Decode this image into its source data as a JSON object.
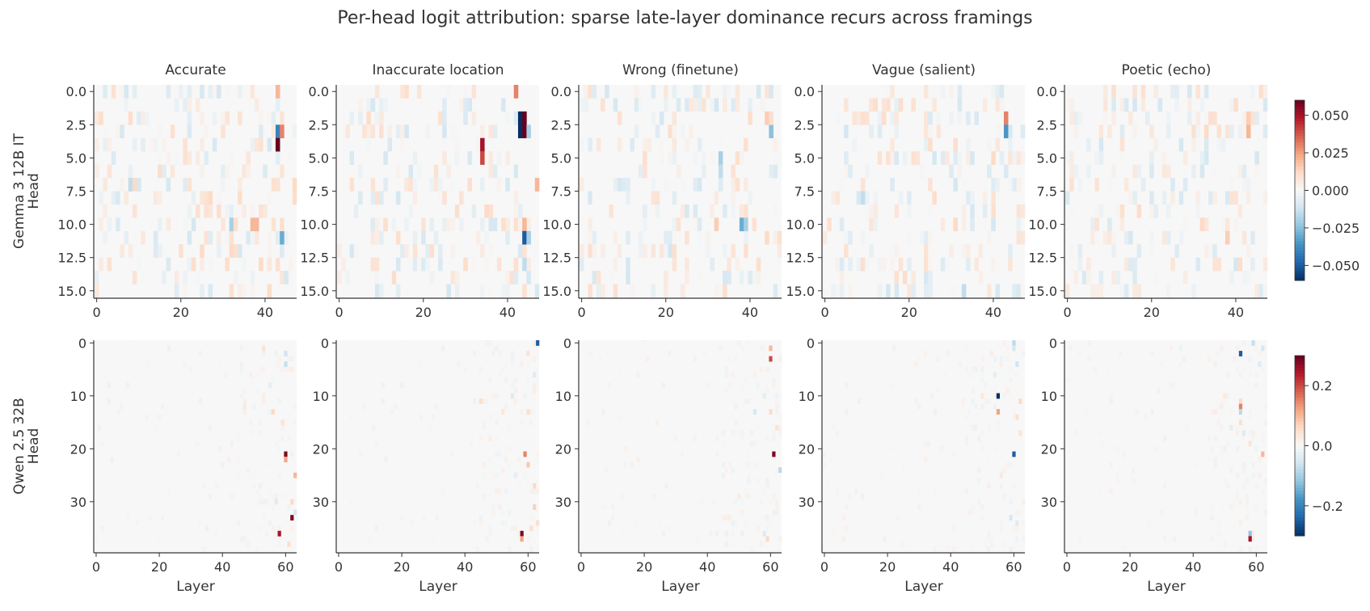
{
  "figure": {
    "title": "Per-head logit attribution: sparse late-layer dominance recurs across framings"
  },
  "chart_data": [
    {
      "type": "heatmap",
      "row": 0,
      "title": "Accurate",
      "ylabel_lines": [
        "Gemma 3 12B IT",
        "Head"
      ],
      "xlabel": "",
      "n_layers": 48,
      "n_heads": 16,
      "x_ticks": [
        0,
        20,
        40
      ],
      "y_ticks": [
        "0.0",
        "2.5",
        "5.0",
        "7.5",
        "10.0",
        "12.5",
        "15.0"
      ],
      "clim": [
        -0.06,
        0.06
      ],
      "cells": [
        [
          43,
          0,
          0.02
        ],
        [
          43,
          3,
          -0.04
        ],
        [
          43,
          4,
          0.06
        ],
        [
          44,
          3,
          0.03
        ],
        [
          29,
          0,
          -0.01
        ],
        [
          32,
          10,
          -0.02
        ],
        [
          33,
          10,
          0.01
        ],
        [
          37,
          10,
          0.02
        ],
        [
          38,
          10,
          0.02
        ],
        [
          44,
          11,
          -0.03
        ],
        [
          44,
          10,
          0.01
        ],
        [
          8,
          7,
          -0.015
        ],
        [
          9,
          7,
          0.012
        ],
        [
          10,
          7,
          -0.01
        ],
        [
          27,
          8,
          0.012
        ],
        [
          25,
          12,
          0.012
        ],
        [
          32,
          12,
          0.012
        ],
        [
          33,
          12,
          0.01
        ],
        [
          39,
          13,
          0.012
        ],
        [
          43,
          13,
          0.01
        ],
        [
          45,
          14,
          -0.01
        ],
        [
          47,
          7,
          0.012
        ],
        [
          28,
          4,
          -0.01
        ],
        [
          24,
          9,
          0.01
        ],
        [
          39,
          3,
          -0.008
        ],
        [
          22,
          5,
          0.006
        ]
      ]
    },
    {
      "type": "heatmap",
      "row": 0,
      "title": "Inaccurate location",
      "ylabel_lines": [],
      "xlabel": "",
      "n_layers": 48,
      "n_heads": 16,
      "x_ticks": [
        0,
        20,
        40
      ],
      "y_ticks": [
        "0.0",
        "2.5",
        "5.0",
        "7.5",
        "10.0",
        "12.5",
        "15.0"
      ],
      "clim": [
        -0.06,
        0.06
      ],
      "cells": [
        [
          42,
          0,
          0.03
        ],
        [
          43,
          2,
          -0.06
        ],
        [
          43,
          3,
          -0.06
        ],
        [
          44,
          2,
          0.06
        ],
        [
          44,
          3,
          0.07
        ],
        [
          45,
          3,
          -0.02
        ],
        [
          34,
          4,
          0.05
        ],
        [
          34,
          5,
          0.04
        ],
        [
          47,
          7,
          0.02
        ],
        [
          44,
          10,
          0.02
        ],
        [
          44,
          11,
          -0.05
        ],
        [
          45,
          11,
          -0.02
        ],
        [
          44,
          13,
          -0.015
        ],
        [
          40,
          7,
          -0.01
        ],
        [
          35,
          9,
          0.012
        ],
        [
          36,
          10,
          -0.01
        ],
        [
          39,
          10,
          0.01
        ],
        [
          28,
          9,
          0.01
        ],
        [
          14,
          11,
          0.01
        ],
        [
          22,
          12,
          0.01
        ],
        [
          8,
          13,
          0.008
        ],
        [
          30,
          1,
          -0.008
        ],
        [
          10,
          2,
          0.006
        ],
        [
          38,
          13,
          0.008
        ],
        [
          25,
          8,
          0.008
        ]
      ]
    },
    {
      "type": "heatmap",
      "row": 0,
      "title": "Wrong (finetune)",
      "ylabel_lines": [],
      "xlabel": "",
      "n_layers": 48,
      "n_heads": 16,
      "x_ticks": [
        0,
        20,
        40
      ],
      "y_ticks": [
        "0.0",
        "2.5",
        "5.0",
        "7.5",
        "10.0",
        "12.5",
        "15.0"
      ],
      "clim": [
        -0.06,
        0.06
      ],
      "cells": [
        [
          42,
          0,
          -0.01
        ],
        [
          44,
          2,
          0.015
        ],
        [
          45,
          3,
          -0.025
        ],
        [
          45,
          2,
          0.01
        ],
        [
          33,
          5,
          -0.02
        ],
        [
          33,
          6,
          -0.015
        ],
        [
          38,
          10,
          -0.03
        ],
        [
          39,
          10,
          -0.02
        ],
        [
          32,
          10,
          0.015
        ],
        [
          42,
          13,
          0.01
        ],
        [
          34,
          14,
          -0.01
        ],
        [
          44,
          11,
          0.012
        ],
        [
          28,
          7,
          -0.01
        ],
        [
          22,
          4,
          0.006
        ],
        [
          15,
          9,
          -0.006
        ],
        [
          36,
          12,
          0.008
        ],
        [
          40,
          14,
          -0.008
        ],
        [
          26,
          1,
          0.006
        ]
      ]
    },
    {
      "type": "heatmap",
      "row": 0,
      "title": "Vague (salient)",
      "ylabel_lines": [],
      "xlabel": "",
      "n_layers": 48,
      "n_heads": 16,
      "x_ticks": [
        0,
        20,
        40
      ],
      "y_ticks": [
        "0.0",
        "2.5",
        "5.0",
        "7.5",
        "10.0",
        "12.5",
        "15.0"
      ],
      "clim": [
        -0.06,
        0.06
      ],
      "cells": [
        [
          43,
          2,
          0.03
        ],
        [
          43,
          3,
          -0.035
        ],
        [
          40,
          5,
          0.012
        ],
        [
          35,
          5,
          -0.01
        ],
        [
          9,
          8,
          -0.015
        ],
        [
          8,
          8,
          -0.01
        ],
        [
          31,
          10,
          0.012
        ],
        [
          40,
          9,
          0.01
        ],
        [
          40,
          10,
          -0.01
        ],
        [
          33,
          15,
          -0.015
        ],
        [
          46,
          11,
          0.008
        ],
        [
          24,
          12,
          0.008
        ],
        [
          30,
          6,
          -0.008
        ],
        [
          16,
          4,
          0.006
        ],
        [
          20,
          13,
          -0.006
        ]
      ]
    },
    {
      "type": "heatmap",
      "row": 0,
      "title": "Poetic (echo)",
      "ylabel_lines": [],
      "xlabel": "",
      "n_layers": 48,
      "n_heads": 16,
      "x_ticks": [
        0,
        20,
        40
      ],
      "y_ticks": [
        "0.0",
        "2.5",
        "5.0",
        "7.5",
        "10.0",
        "12.5",
        "15.0"
      ],
      "clim": [
        -0.06,
        0.06
      ],
      "cells": [
        [
          43,
          2,
          0.015
        ],
        [
          43,
          3,
          0.02
        ],
        [
          33,
          3,
          0.012
        ],
        [
          33,
          5,
          -0.01
        ],
        [
          32,
          10,
          0.012
        ],
        [
          38,
          11,
          0.015
        ],
        [
          28,
          7,
          -0.008
        ],
        [
          47,
          13,
          0.006
        ],
        [
          21,
          9,
          -0.006
        ],
        [
          16,
          6,
          0.006
        ],
        [
          36,
          13,
          0.008
        ],
        [
          24,
          11,
          -0.006
        ]
      ]
    },
    {
      "type": "heatmap",
      "row": 1,
      "title": "",
      "ylabel_lines": [
        "Qwen 2.5 32B",
        "Head"
      ],
      "xlabel": "Layer",
      "n_layers": 64,
      "n_heads": 40,
      "x_ticks": [
        0,
        20,
        40,
        60
      ],
      "y_ticks": [
        "0",
        "10",
        "20",
        "30"
      ],
      "clim": [
        -0.3,
        0.3
      ],
      "cells": [
        [
          60,
          2,
          -0.06
        ],
        [
          60,
          4,
          -0.07
        ],
        [
          56,
          13,
          0.06
        ],
        [
          60,
          21,
          0.28
        ],
        [
          60,
          22,
          0.12
        ],
        [
          63,
          25,
          0.1
        ],
        [
          62,
          33,
          0.28
        ],
        [
          58,
          36,
          0.25
        ],
        [
          62,
          30,
          0.06
        ],
        [
          57,
          30,
          -0.04
        ],
        [
          53,
          1,
          0.04
        ],
        [
          55,
          8,
          -0.03
        ],
        [
          47,
          12,
          0.03
        ],
        [
          59,
          15,
          0.04
        ],
        [
          63,
          32,
          -0.05
        ],
        [
          61,
          38,
          0.05
        ],
        [
          52,
          27,
          0.02
        ]
      ]
    },
    {
      "type": "heatmap",
      "row": 1,
      "title": "",
      "ylabel_lines": [],
      "xlabel": "Layer",
      "n_layers": 64,
      "n_heads": 40,
      "x_ticks": [
        0,
        20,
        40,
        60
      ],
      "y_ticks": [
        "0",
        "10",
        "20",
        "30"
      ],
      "clim": [
        -0.3,
        0.3
      ],
      "cells": [
        [
          63,
          0,
          -0.25
        ],
        [
          60,
          2,
          0.04
        ],
        [
          59,
          21,
          0.15
        ],
        [
          60,
          23,
          0.08
        ],
        [
          62,
          31,
          0.07
        ],
        [
          63,
          34,
          0.05
        ],
        [
          58,
          36,
          0.28
        ],
        [
          58,
          37,
          0.12
        ],
        [
          61,
          35,
          0.05
        ],
        [
          45,
          11,
          0.05
        ],
        [
          55,
          10,
          -0.04
        ],
        [
          52,
          13,
          0.03
        ],
        [
          60,
          13,
          0.05
        ],
        [
          48,
          18,
          0.02
        ],
        [
          62,
          27,
          0.06
        ],
        [
          56,
          25,
          -0.03
        ],
        [
          62,
          6,
          -0.04
        ]
      ]
    },
    {
      "type": "heatmap",
      "row": 1,
      "title": "",
      "ylabel_lines": [],
      "xlabel": "Layer",
      "n_layers": 64,
      "n_heads": 40,
      "x_ticks": [
        0,
        20,
        40,
        60
      ],
      "y_ticks": [
        "0",
        "10",
        "20",
        "30"
      ],
      "clim": [
        -0.3,
        0.3
      ],
      "cells": [
        [
          60,
          1,
          0.1
        ],
        [
          60,
          3,
          0.2
        ],
        [
          61,
          21,
          0.28
        ],
        [
          63,
          24,
          -0.08
        ],
        [
          55,
          13,
          -0.05
        ],
        [
          60,
          13,
          0.06
        ],
        [
          58,
          36,
          -0.04
        ],
        [
          59,
          37,
          0.06
        ],
        [
          50,
          29,
          0.03
        ],
        [
          58,
          10,
          -0.03
        ],
        [
          62,
          16,
          0.04
        ]
      ]
    },
    {
      "type": "heatmap",
      "row": 1,
      "title": "",
      "ylabel_lines": [],
      "xlabel": "Layer",
      "n_layers": 64,
      "n_heads": 40,
      "x_ticks": [
        0,
        20,
        40,
        60
      ],
      "y_ticks": [
        "0",
        "10",
        "20",
        "30"
      ],
      "clim": [
        -0.3,
        0.3
      ],
      "cells": [
        [
          60,
          0,
          -0.08
        ],
        [
          60,
          1,
          -0.05
        ],
        [
          61,
          4,
          -0.06
        ],
        [
          55,
          10,
          -0.3
        ],
        [
          55,
          13,
          0.12
        ],
        [
          60,
          21,
          -0.25
        ],
        [
          62,
          11,
          0.06
        ],
        [
          61,
          14,
          0.05
        ],
        [
          62,
          17,
          0.04
        ],
        [
          59,
          33,
          -0.05
        ],
        [
          61,
          34,
          -0.04
        ],
        [
          54,
          6,
          -0.03
        ],
        [
          50,
          10,
          0.03
        ],
        [
          56,
          25,
          0.03
        ],
        [
          53,
          2,
          0.02
        ]
      ]
    },
    {
      "type": "heatmap",
      "row": 1,
      "title": "",
      "ylabel_lines": [],
      "xlabel": "Layer",
      "n_layers": 64,
      "n_heads": 40,
      "x_ticks": [
        0,
        20,
        40,
        60
      ],
      "y_ticks": [
        "0",
        "10",
        "20",
        "30"
      ],
      "clim": [
        -0.3,
        0.3
      ],
      "cells": [
        [
          59,
          0,
          -0.07
        ],
        [
          55,
          2,
          -0.25
        ],
        [
          62,
          1,
          -0.05
        ],
        [
          61,
          4,
          -0.04
        ],
        [
          55,
          11,
          0.06
        ],
        [
          55,
          12,
          0.15
        ],
        [
          55,
          13,
          -0.08
        ],
        [
          55,
          15,
          0.05
        ],
        [
          56,
          17,
          -0.04
        ],
        [
          58,
          19,
          0.04
        ],
        [
          62,
          21,
          0.1
        ],
        [
          58,
          36,
          -0.12
        ],
        [
          58,
          37,
          0.25
        ],
        [
          50,
          10,
          0.03
        ],
        [
          52,
          16,
          -0.03
        ],
        [
          47,
          13,
          0.02
        ]
      ]
    }
  ],
  "colorbars": [
    {
      "row": 0,
      "ticks": [
        0.05,
        0.025,
        0.0,
        -0.025,
        -0.05
      ],
      "tick_labels": [
        "0.050",
        "0.025",
        "0.000",
        "−0.025",
        "−0.050"
      ],
      "clim": [
        -0.06,
        0.06
      ]
    },
    {
      "row": 1,
      "ticks": [
        0.2,
        0.0,
        -0.2
      ],
      "tick_labels": [
        "0.2",
        "0.0",
        "−0.2"
      ],
      "clim": [
        -0.3,
        0.3
      ]
    }
  ],
  "colors": {
    "cmap": [
      "#053061",
      "#2166ac",
      "#4393c3",
      "#92c5de",
      "#d1e5f0",
      "#f7f7f7",
      "#fddbc7",
      "#f4a582",
      "#d6604d",
      "#b2182b",
      "#67001f"
    ],
    "axis": "#333333"
  }
}
